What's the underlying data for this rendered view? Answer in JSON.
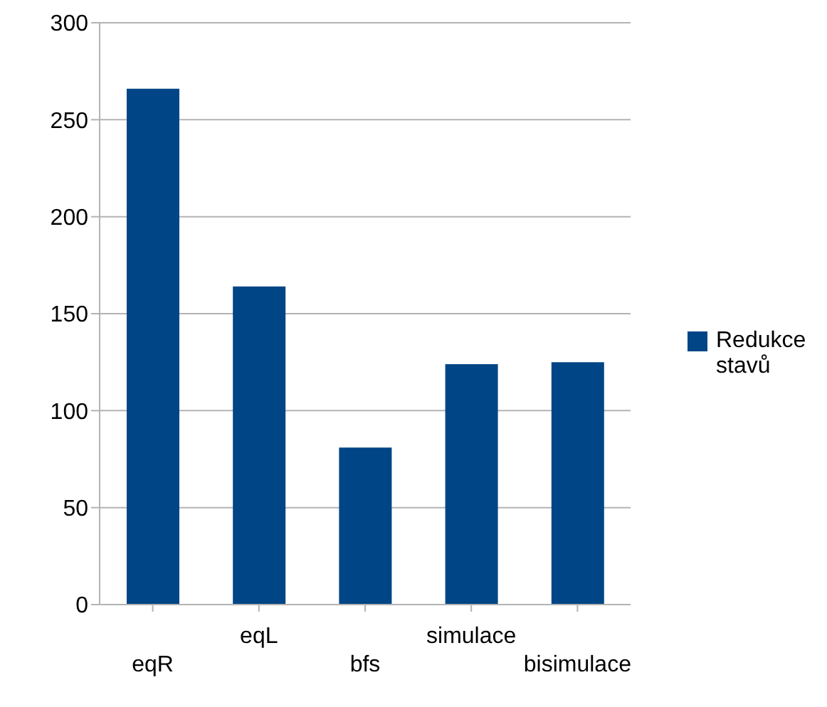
{
  "chart_data": {
    "type": "bar",
    "categories": [
      "eqR",
      "eqL",
      "bfs",
      "simulace",
      "bisimulace"
    ],
    "series": [
      {
        "name": "Redukce stavů",
        "color": "#004586",
        "values": [
          266,
          164,
          81,
          124,
          125
        ]
      }
    ],
    "ylim": [
      0,
      300
    ],
    "yticks": [
      0,
      50,
      100,
      150,
      200,
      250,
      300
    ],
    "grid": "y",
    "legend": "right"
  }
}
